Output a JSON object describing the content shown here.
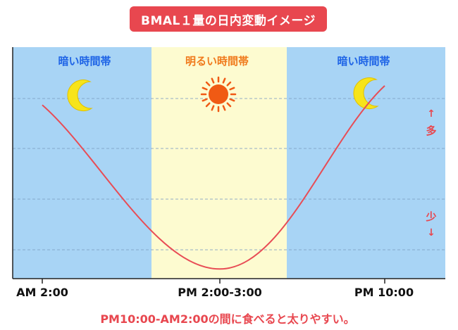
{
  "chart_data": {
    "type": "line",
    "title": "BMAL１量の日内変動イメージ",
    "x_ticks": [
      "AM 2:00",
      "PM 2:00-3:00",
      "PM 10:00"
    ],
    "series": [
      {
        "values": [
          {
            "x": "AM 2:00",
            "y": 0.9
          },
          {
            "x": "PM 2:00-3:00",
            "y": 0.05
          },
          {
            "x": "PM 10:00",
            "y": 1.0
          }
        ]
      }
    ],
    "ylim": [
      0,
      1.2
    ],
    "grid": true,
    "bands": [
      {
        "label": "暗い時間帯",
        "color": "#a8d4f5",
        "icon": "moon-icon"
      },
      {
        "label": "明るい時間帯",
        "color": "#fdfbd0",
        "icon": "sun-icon"
      },
      {
        "label": "暗い時間帯",
        "color": "#a8d4f5",
        "icon": "moon-icon"
      }
    ],
    "y_indicator_top": "多",
    "y_indicator_bottom": "少",
    "annotation": "PM10:00-AM2:00の間に食べると太りやすい。"
  },
  "colors": {
    "line": "#e84c55",
    "accent": "#e8474f",
    "dark_band": "#a8d4f5",
    "light_band": "#fdfbd0",
    "dark_label": "#1e64e6",
    "light_label": "#f07a1c",
    "moon": "#f7e41a",
    "sun": "#f05a14"
  }
}
